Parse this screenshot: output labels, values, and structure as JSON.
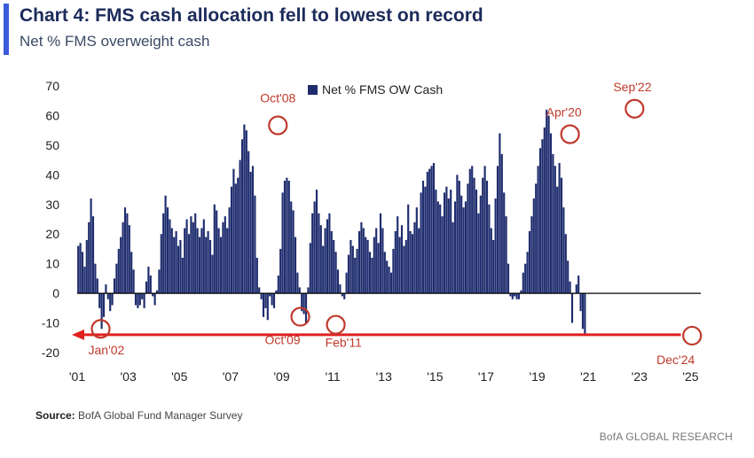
{
  "header": {
    "title": "Chart 4: FMS cash allocation fell to lowest on record",
    "subtitle": "Net % FMS overweight cash"
  },
  "footer": {
    "source_label": "Source:",
    "source_text": "BofA Global Fund Manager Survey",
    "brand": "BofA GLOBAL RESEARCH"
  },
  "chart_data": {
    "type": "bar",
    "title": "Chart 4: FMS cash allocation fell to lowest on record",
    "subtitle": "Net % FMS overweight cash",
    "xlabel": "",
    "ylabel": "",
    "ylim": [
      -20,
      70
    ],
    "yticks": [
      70,
      60,
      50,
      40,
      30,
      20,
      10,
      0,
      -10,
      -20
    ],
    "xlim": [
      2001.0,
      2025.4
    ],
    "xticks": [
      "'01",
      "'03",
      "'05",
      "'07",
      "'09",
      "'11",
      "'13",
      "'15",
      "'17",
      "'19",
      "'21",
      "'23",
      "'25"
    ],
    "grid": false,
    "legend": {
      "position": "top",
      "entries": [
        "Net % FMS OW Cash"
      ]
    },
    "bar_color": "#1f2d6e",
    "annotation_color": "#c0392b",
    "series": [
      {
        "name": "Net % FMS OW Cash",
        "x_start": 2001.0,
        "x_step": 0.0833,
        "values": [
          16,
          17,
          14,
          9,
          18,
          24,
          32,
          26,
          10,
          5,
          -5,
          -12,
          -8,
          3,
          -2,
          -6,
          -4,
          5,
          10,
          15,
          19,
          24,
          29,
          27,
          23,
          14,
          8,
          -4,
          -5,
          -4,
          -2,
          -5,
          4,
          9,
          6,
          -1,
          -4,
          1,
          8,
          20,
          27,
          33,
          29,
          25,
          22,
          19,
          21,
          16,
          18,
          12,
          22,
          25,
          20,
          26,
          24,
          27,
          22,
          19,
          22,
          25,
          19,
          21,
          18,
          13,
          30,
          28,
          22,
          19,
          24,
          26,
          22,
          29,
          36,
          42,
          37,
          39,
          45,
          52,
          57,
          55,
          48,
          41,
          43,
          33,
          12,
          2,
          -2,
          -8,
          -5,
          -9,
          -1,
          -4,
          -5,
          1,
          6,
          15,
          34,
          38,
          39,
          38,
          31,
          28,
          19,
          7,
          2,
          -6,
          -7,
          -10,
          2,
          17,
          27,
          31,
          35,
          27,
          23,
          16,
          22,
          25,
          27,
          21,
          18,
          14,
          8,
          3,
          -1,
          -2,
          7,
          13,
          18,
          16,
          12,
          15,
          21,
          24,
          22,
          19,
          18,
          14,
          12,
          19,
          22,
          17,
          27,
          22,
          14,
          11,
          9,
          7,
          15,
          21,
          26,
          19,
          23,
          16,
          18,
          30,
          21,
          20,
          24,
          29,
          22,
          34,
          38,
          36,
          41,
          42,
          43,
          44,
          35,
          31,
          30,
          26,
          34,
          36,
          32,
          35,
          24,
          31,
          40,
          38,
          33,
          29,
          31,
          37,
          42,
          43,
          39,
          35,
          27,
          33,
          39,
          43,
          38,
          30,
          22,
          18,
          32,
          43,
          54,
          47,
          34,
          26,
          10,
          -1,
          -2,
          -1,
          -2,
          -2,
          1,
          7,
          10,
          14,
          21,
          26,
          32,
          37,
          43,
          49,
          52,
          56,
          62,
          60,
          54,
          47,
          43,
          36,
          44,
          39,
          29,
          20,
          11,
          4,
          -10,
          0,
          3,
          6,
          -6,
          -12,
          -14
        ]
      }
    ],
    "annotations": [
      {
        "label": "Jan'02",
        "x": 2001.92,
        "y": -12
      },
      {
        "label": "Oct'08",
        "x": 2008.75,
        "y": 57
      },
      {
        "label": "Oct'09",
        "x": 2009.8,
        "y": -7
      },
      {
        "label": "Feb'11",
        "x": 2011.12,
        "y": -10
      },
      {
        "label": "Apr'20",
        "x": 2020.25,
        "y": 54
      },
      {
        "label": "Sep'22",
        "x": 2022.67,
        "y": 62
      },
      {
        "label": "Dec'24",
        "x": 2024.92,
        "y": -14
      }
    ],
    "reference_arrow": {
      "y": -14,
      "from_x": 2024.9,
      "to_x": 2001.0,
      "color": "#e02020"
    }
  }
}
